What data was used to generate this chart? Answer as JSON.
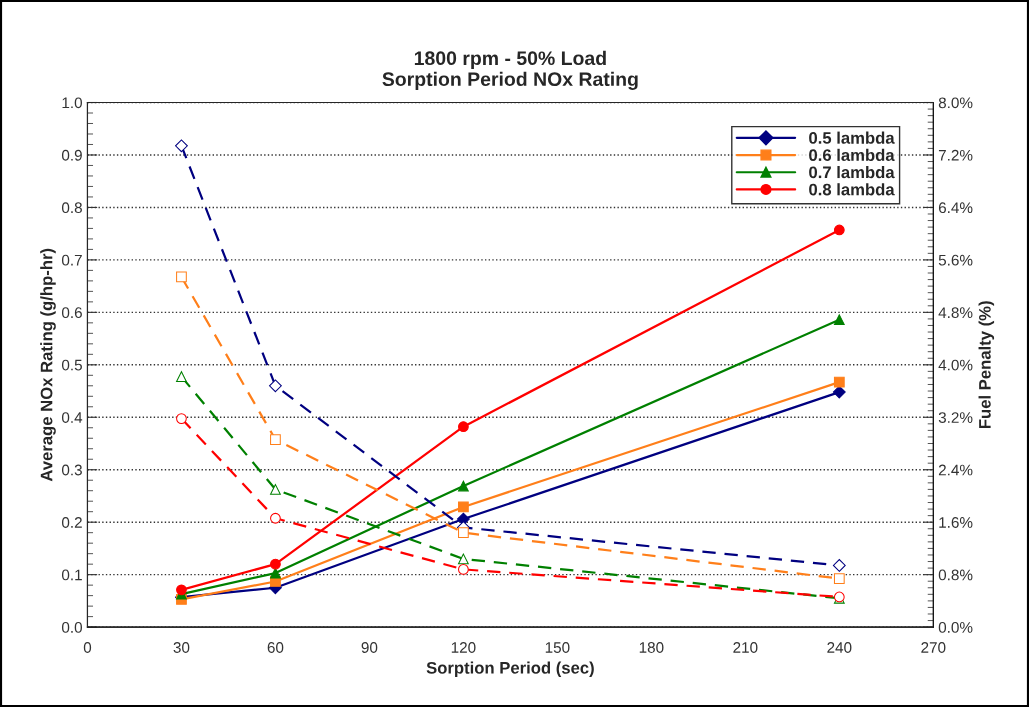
{
  "chart_data": {
    "type": "line",
    "title": "1800 rpm - 50% Load\nSorption Period NOx Rating",
    "xlabel": "Sorption Period (sec)",
    "ylabel": "Average NOx Rating (g/hp-hr)",
    "y2label": "Fuel Penalty (%)",
    "x": [
      30,
      60,
      120,
      240
    ],
    "series": [
      {
        "name": "0.5 lambda",
        "color": "#000080",
        "marker": "diamond",
        "values": [
          0.057,
          0.075,
          0.206,
          0.448
        ]
      },
      {
        "name": "0.6 lambda",
        "color": "#ff7f1a",
        "marker": "square",
        "values": [
          0.053,
          0.087,
          0.229,
          0.467
        ]
      },
      {
        "name": "0.7 lambda",
        "color": "#008000",
        "marker": "triangle",
        "values": [
          0.063,
          0.103,
          0.269,
          0.586
        ]
      },
      {
        "name": "0.8 lambda",
        "color": "#ff0000",
        "marker": "circle",
        "values": [
          0.071,
          0.12,
          0.382,
          0.757
        ]
      },
      {
        "color": "#000080",
        "marker": "diamond",
        "line_style": "dashed",
        "axis": "y2",
        "values": [
          7.34,
          3.68,
          1.52,
          0.94
        ]
      },
      {
        "color": "#ff7f1a",
        "marker": "square",
        "line_style": "dashed",
        "axis": "y2",
        "values": [
          5.34,
          2.86,
          1.44,
          0.74
        ]
      },
      {
        "color": "#008000",
        "marker": "triangle",
        "line_style": "dashed",
        "axis": "y2",
        "values": [
          3.82,
          2.1,
          1.04,
          0.44
        ]
      },
      {
        "color": "#ff0000",
        "marker": "circle",
        "line_style": "dashed",
        "axis": "y2",
        "values": [
          3.18,
          1.66,
          0.88,
          0.46
        ]
      }
    ],
    "xlim": [
      0,
      270
    ],
    "xticks": [
      0,
      30,
      60,
      90,
      120,
      150,
      180,
      210,
      240,
      270
    ],
    "ylim": [
      0,
      1.0
    ],
    "yticks": [
      {
        "value": 0,
        "label": "0.0"
      },
      0.1,
      0.2,
      0.3,
      0.4,
      0.5,
      0.6,
      0.7,
      0.8,
      0.9,
      {
        "value": 1.0,
        "label": "1.0"
      }
    ],
    "y2lim": [
      0,
      8.0
    ],
    "y2ticks": [
      {
        "value": 0,
        "label": "0.0%"
      },
      {
        "value": 0.8,
        "label": "0.8%"
      },
      {
        "value": 1.6,
        "label": "1.6%"
      },
      {
        "value": 2.4,
        "label": "2.4%"
      },
      {
        "value": 3.2,
        "label": "3.2%"
      },
      {
        "value": 4.0,
        "label": "4.0%"
      },
      {
        "value": 4.8,
        "label": "4.8%"
      },
      {
        "value": 5.6,
        "label": "5.6%"
      },
      {
        "value": 6.4,
        "label": "6.4%"
      },
      {
        "value": 7.2,
        "label": "7.2%"
      },
      {
        "value": 8.0,
        "label": "8.0%"
      }
    ],
    "grid": "y",
    "legend": "top right"
  }
}
